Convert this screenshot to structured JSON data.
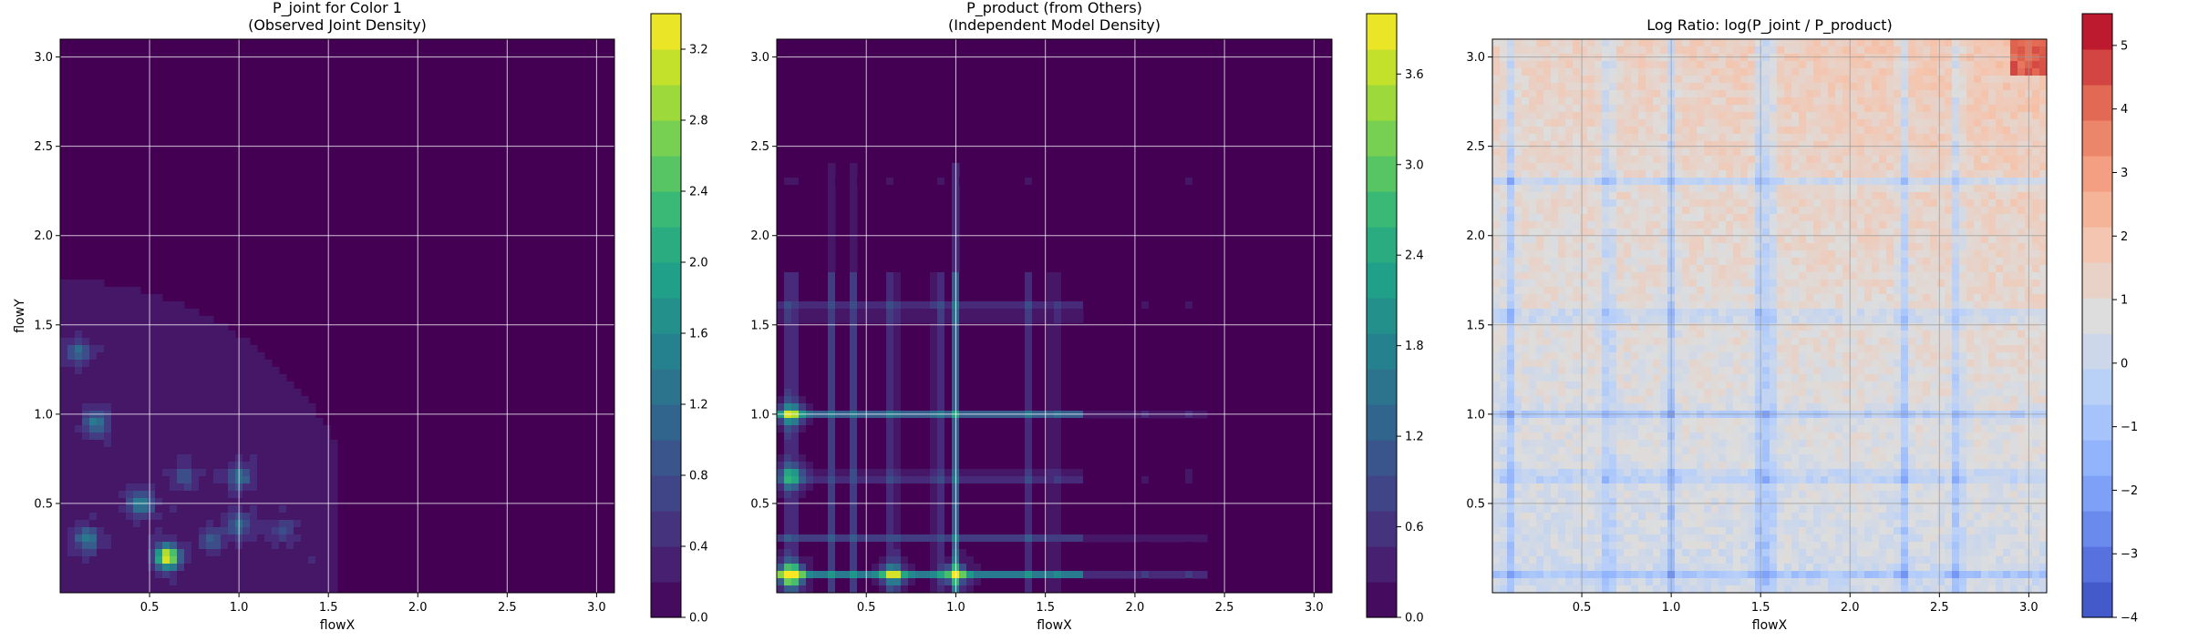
{
  "chart_data": [
    {
      "type": "heatmap",
      "title": "P_joint for Color 1\n(Observed Joint Density)",
      "xlabel": "flowX",
      "ylabel": "flowY",
      "xlim": [
        0,
        3.1
      ],
      "ylim": [
        0,
        3.1
      ],
      "xticks": [
        "0.5",
        "1.0",
        "1.5",
        "2.0",
        "2.5",
        "3.0"
      ],
      "yticks": [
        "0.5",
        "1.0",
        "1.5",
        "2.0",
        "2.5",
        "3.0"
      ],
      "grid": true,
      "colormap": "viridis",
      "colorbar_range": [
        0,
        3.4
      ],
      "colorbar_ticks": [
        "0.0",
        "0.4",
        "0.8",
        "1.2",
        "1.6",
        "2.0",
        "2.4",
        "2.8",
        "3.2"
      ],
      "hotspots": [
        {
          "x": 0.6,
          "y": 0.2,
          "value": 3.3
        },
        {
          "x": 0.45,
          "y": 0.5,
          "value": 1.4
        },
        {
          "x": 0.15,
          "y": 0.3,
          "value": 1.2
        },
        {
          "x": 0.2,
          "y": 0.95,
          "value": 1.2
        },
        {
          "x": 1.0,
          "y": 0.65,
          "value": 1.1
        },
        {
          "x": 1.0,
          "y": 0.38,
          "value": 1.0
        },
        {
          "x": 0.1,
          "y": 1.35,
          "value": 0.9
        },
        {
          "x": 0.85,
          "y": 0.3,
          "value": 0.8
        },
        {
          "x": 0.7,
          "y": 0.65,
          "value": 0.6
        },
        {
          "x": 1.25,
          "y": 0.35,
          "value": 0.5
        }
      ]
    },
    {
      "type": "heatmap",
      "title": "P_product (from Others)\n(Independent Model Density)",
      "xlabel": "flowX",
      "ylabel": "",
      "xlim": [
        0,
        3.1
      ],
      "ylim": [
        0,
        3.1
      ],
      "xticks": [
        "0.5",
        "1.0",
        "1.5",
        "2.0",
        "2.5",
        "3.0"
      ],
      "yticks": [
        "0.5",
        "1.0",
        "1.5",
        "2.0",
        "2.5",
        "3.0"
      ],
      "grid": true,
      "colormap": "viridis",
      "colorbar_range": [
        0,
        4.0
      ],
      "colorbar_ticks": [
        "0.0",
        "0.6",
        "1.2",
        "1.8",
        "2.4",
        "3.0",
        "3.6"
      ],
      "x_bands": [
        {
          "x": 0.08,
          "value": 1.6
        },
        {
          "x": 0.3,
          "value": 0.6
        },
        {
          "x": 0.42,
          "value": 0.7
        },
        {
          "x": 0.65,
          "value": 1.3
        },
        {
          "x": 0.9,
          "value": 1.0
        },
        {
          "x": 1.0,
          "value": 1.2
        },
        {
          "x": 1.4,
          "value": 0.5
        },
        {
          "x": 1.55,
          "value": 0.6
        },
        {
          "x": 2.05,
          "value": 0.3
        },
        {
          "x": 2.3,
          "value": 0.3
        }
      ],
      "y_bands": [
        {
          "y": 0.1,
          "value": 1.6
        },
        {
          "y": 0.3,
          "value": 0.6
        },
        {
          "y": 0.65,
          "value": 1.2
        },
        {
          "y": 1.0,
          "value": 1.1
        },
        {
          "y": 1.55,
          "value": 0.6
        },
        {
          "y": 1.6,
          "value": 0.6
        },
        {
          "y": 2.3,
          "value": 0.2
        }
      ],
      "hotspots": [
        {
          "x": 0.08,
          "y": 0.1,
          "value": 3.9
        },
        {
          "x": 0.08,
          "y": 1.0,
          "value": 2.2
        },
        {
          "x": 0.08,
          "y": 0.65,
          "value": 2.0
        },
        {
          "x": 0.65,
          "y": 0.1,
          "value": 2.0
        },
        {
          "x": 1.0,
          "y": 0.1,
          "value": 1.9
        }
      ]
    },
    {
      "type": "heatmap",
      "title": "Log Ratio: log(P_joint / P_product)",
      "xlabel": "flowX",
      "ylabel": "",
      "xlim": [
        0,
        3.1
      ],
      "ylim": [
        0,
        3.1
      ],
      "xticks": [
        "0.5",
        "1.0",
        "1.5",
        "2.0",
        "2.5",
        "3.0"
      ],
      "yticks": [
        "0.5",
        "1.0",
        "1.5",
        "2.0",
        "2.5",
        "3.0"
      ],
      "grid": true,
      "colormap": "coolwarm",
      "colorbar_range": [
        -4,
        5.5
      ],
      "colorbar_ticks": [
        "−4",
        "−3",
        "−2",
        "−1",
        "0",
        "1",
        "2",
        "3",
        "4",
        "5"
      ]
    }
  ]
}
